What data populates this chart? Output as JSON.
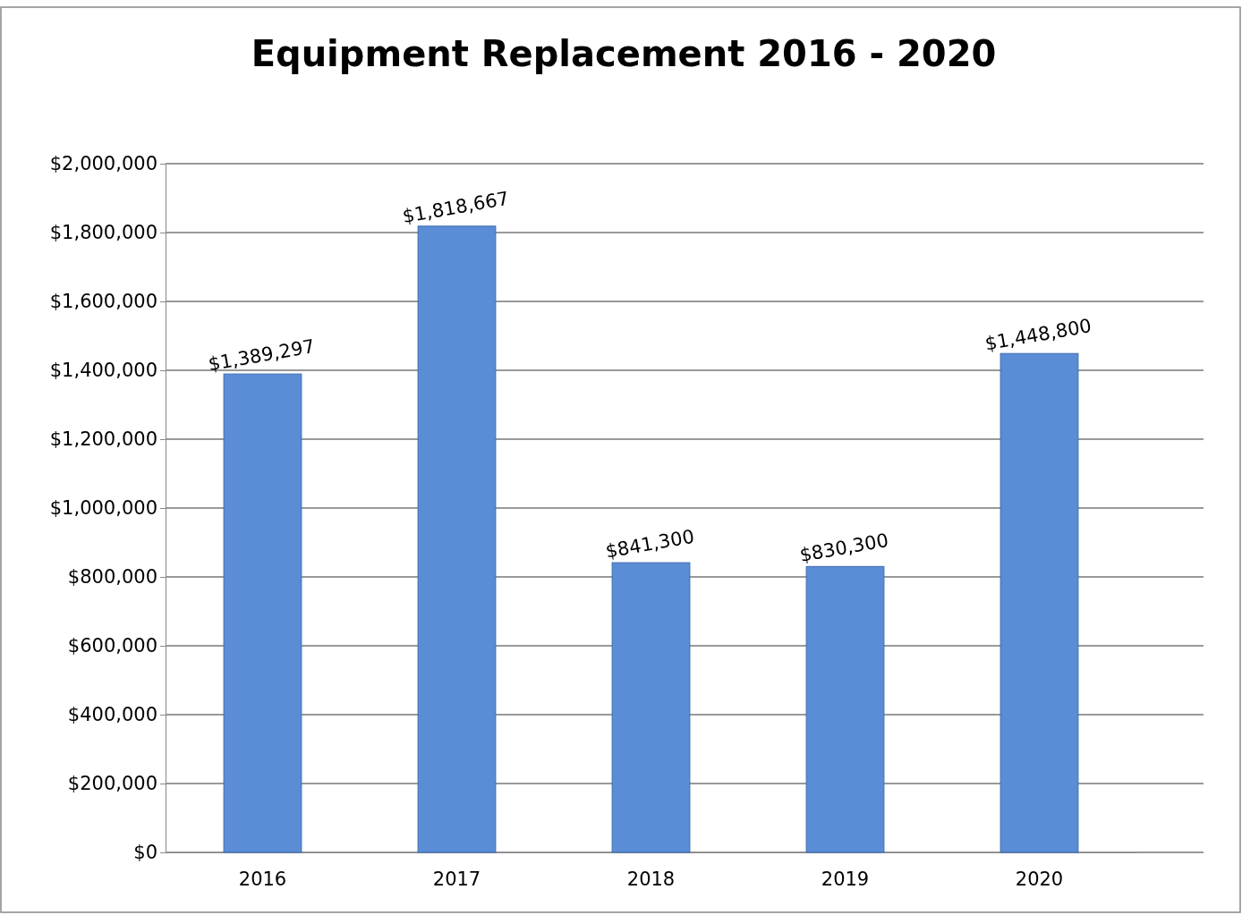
{
  "chart_data": {
    "type": "bar",
    "title": "Equipment Replacement 2016 - 2020",
    "categories": [
      "2016",
      "2017",
      "2018",
      "2019",
      "2020"
    ],
    "values": [
      1389297,
      1818667,
      841300,
      830300,
      1448800
    ],
    "value_labels": [
      "$1,389,297",
      "$1,818,667",
      "$841,300",
      "$830,300",
      "$1,448,800"
    ],
    "color": "#5b8cd6",
    "ylim": [
      0,
      2000000
    ],
    "yticks": [
      {
        "value": 0,
        "label": "$0"
      },
      {
        "value": 200000,
        "label": "$200,000"
      },
      {
        "value": 400000,
        "label": "$400,000"
      },
      {
        "value": 600000,
        "label": "$600,000"
      },
      {
        "value": 800000,
        "label": "$800,000"
      },
      {
        "value": 1000000,
        "label": "$1,000,000"
      },
      {
        "value": 1200000,
        "label": "$1,200,000"
      },
      {
        "value": 1400000,
        "label": "$1,400,000"
      },
      {
        "value": 1600000,
        "label": "$1,600,000"
      },
      {
        "value": 1800000,
        "label": "$1,800,000"
      },
      {
        "value": 2000000,
        "label": "$2,000,000"
      }
    ],
    "grid": "y"
  }
}
